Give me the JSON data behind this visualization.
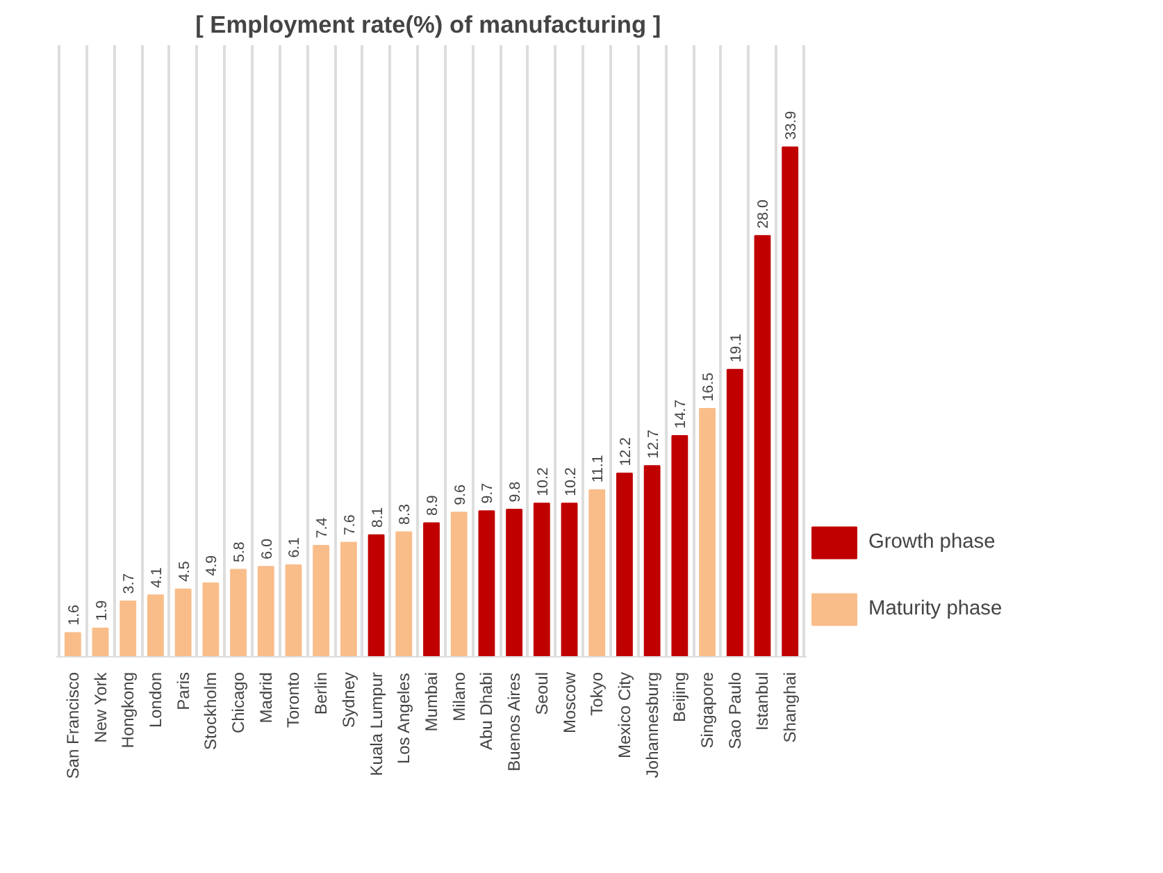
{
  "chart_data": {
    "type": "bar",
    "title": "[ Employment rate(%) of  manufacturing ]",
    "categories": [
      "San Francisco",
      "New York",
      "Hongkong",
      "London",
      "Paris",
      "Stockholm",
      "Chicago",
      "Madrid",
      "Toronto",
      "Berlin",
      "Sydney",
      "Kuala Lumpur",
      "Los Angeles",
      "Mumbai",
      "Milano",
      "Abu Dhabi",
      "Buenos Aires",
      "Seoul",
      "Moscow",
      "Tokyo",
      "Mexico City",
      "Johannesburg",
      "Beijing",
      "Singapore",
      "Sao Paulo",
      "Istanbul",
      "Shanghai"
    ],
    "series": [
      {
        "name": "Growth phase",
        "color": "#c00000",
        "values": [
          null,
          null,
          null,
          null,
          null,
          null,
          null,
          null,
          null,
          null,
          null,
          8.1,
          null,
          8.9,
          null,
          9.7,
          9.8,
          10.2,
          10.2,
          null,
          12.2,
          12.7,
          14.7,
          null,
          19.1,
          28.0,
          33.9
        ],
        "value_labels": [
          null,
          null,
          null,
          null,
          null,
          null,
          null,
          null,
          null,
          null,
          null,
          "8.1",
          null,
          "8.9",
          null,
          "9.7",
          "9.8",
          "10.2",
          "10.2",
          null,
          "12.2",
          "12.7",
          "14.7",
          null,
          "19.1",
          "28.0",
          "33.9"
        ]
      },
      {
        "name": "Maturity phase",
        "color": "#f9bd8a",
        "values": [
          1.6,
          1.9,
          3.7,
          4.1,
          4.5,
          4.9,
          5.8,
          6.0,
          6.1,
          7.4,
          7.6,
          null,
          8.3,
          null,
          9.6,
          null,
          null,
          null,
          null,
          11.1,
          null,
          null,
          null,
          16.5,
          null,
          null,
          null
        ],
        "value_labels": [
          "1.6",
          "1.9",
          "3.7",
          "4.1",
          "4.5",
          "4.9",
          "5.8",
          "6.0",
          "6.1",
          "7.4",
          "7.6",
          null,
          "8.3",
          null,
          "9.6",
          null,
          null,
          null,
          null,
          "11.1",
          null,
          null,
          null,
          "16.5",
          null,
          null,
          null
        ]
      }
    ],
    "grid": "x",
    "legend": "right"
  }
}
